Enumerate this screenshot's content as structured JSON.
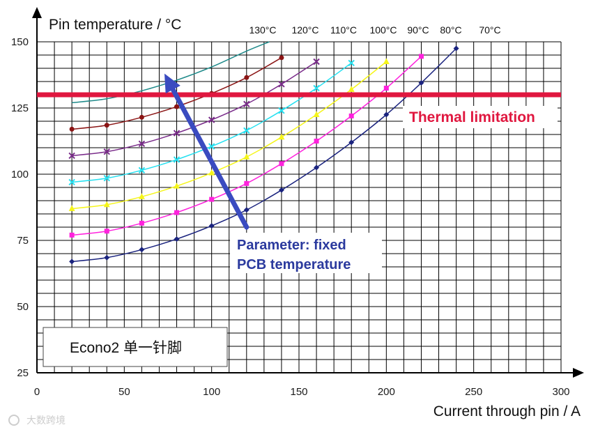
{
  "chart_data": {
    "type": "line",
    "xlabel": "Current through pin / A",
    "ylabel": "Pin temperature / °C",
    "xlim": [
      0,
      300
    ],
    "ylim": [
      25,
      150
    ],
    "grid": true,
    "x_ticks": [
      0,
      50,
      100,
      150,
      200,
      250,
      300
    ],
    "y_ticks": [
      25,
      50,
      75,
      100,
      125,
      150
    ],
    "series": [
      {
        "name": "70°C",
        "color": "#1a237e",
        "marker": "diamond",
        "x": [
          20,
          40,
          60,
          80,
          100,
          120,
          140,
          160,
          180,
          200,
          220,
          240
        ],
        "y": [
          67,
          68.5,
          71.5,
          75.5,
          80.5,
          86.5,
          94,
          102.5,
          112,
          122.5,
          134.5,
          147.5
        ]
      },
      {
        "name": "80°C",
        "color": "#ff22dd",
        "marker": "square",
        "x": [
          20,
          40,
          60,
          80,
          100,
          120,
          140,
          160,
          180,
          200,
          220
        ],
        "y": [
          77,
          78.5,
          81.5,
          85.5,
          90.5,
          96.5,
          104,
          112.5,
          122,
          132.5,
          144.5
        ]
      },
      {
        "name": "90°C",
        "color": "#f5f51a",
        "marker": "triangle",
        "x": [
          20,
          40,
          60,
          80,
          100,
          120,
          140,
          160,
          180,
          200
        ],
        "y": [
          87,
          88.5,
          91.5,
          95.5,
          100.5,
          106.5,
          114,
          122.5,
          132,
          142.5
        ]
      },
      {
        "name": "100°C",
        "color": "#26e0f0",
        "marker": "x",
        "x": [
          20,
          40,
          60,
          80,
          100,
          120,
          140,
          160,
          180
        ],
        "y": [
          97,
          98.5,
          101.5,
          105.5,
          110.5,
          116.5,
          124,
          132.5,
          142
        ]
      },
      {
        "name": "110°C",
        "color": "#7a2c8a",
        "marker": "x",
        "x": [
          20,
          40,
          60,
          80,
          100,
          120,
          140,
          160
        ],
        "y": [
          107,
          108.5,
          111.5,
          115.5,
          120.5,
          126.5,
          134,
          142.5
        ]
      },
      {
        "name": "120°C",
        "color": "#8b1515",
        "marker": "circle",
        "x": [
          20,
          40,
          60,
          80,
          100,
          120,
          140
        ],
        "y": [
          117,
          118.5,
          121.5,
          125.5,
          130.5,
          136.5,
          144
        ]
      },
      {
        "name": "130°C",
        "color": "#1f8a8a",
        "marker": "none",
        "x": [
          20,
          40,
          60,
          80,
          100,
          120,
          133
        ],
        "y": [
          127,
          128.5,
          131.5,
          135.5,
          140.5,
          146.5,
          150
        ]
      }
    ],
    "series_end_labels": [
      "130°C",
      "120°C",
      "110°C",
      "100°C",
      "90°C",
      "80°C",
      "70°C"
    ],
    "thermal_limit": {
      "value": 130,
      "label": "Thermal limitation",
      "color": "#e0173f"
    },
    "parameter_annotation": {
      "line1": "Parameter: fixed",
      "line2": "PCB temperature",
      "color": "#3a4bc0",
      "arrow_from": {
        "x": 120,
        "y": 80
      },
      "arrow_to": {
        "x": 73,
        "y": 138
      }
    },
    "caption": "Econo2 单一针脚",
    "watermark": "大数跨境"
  }
}
